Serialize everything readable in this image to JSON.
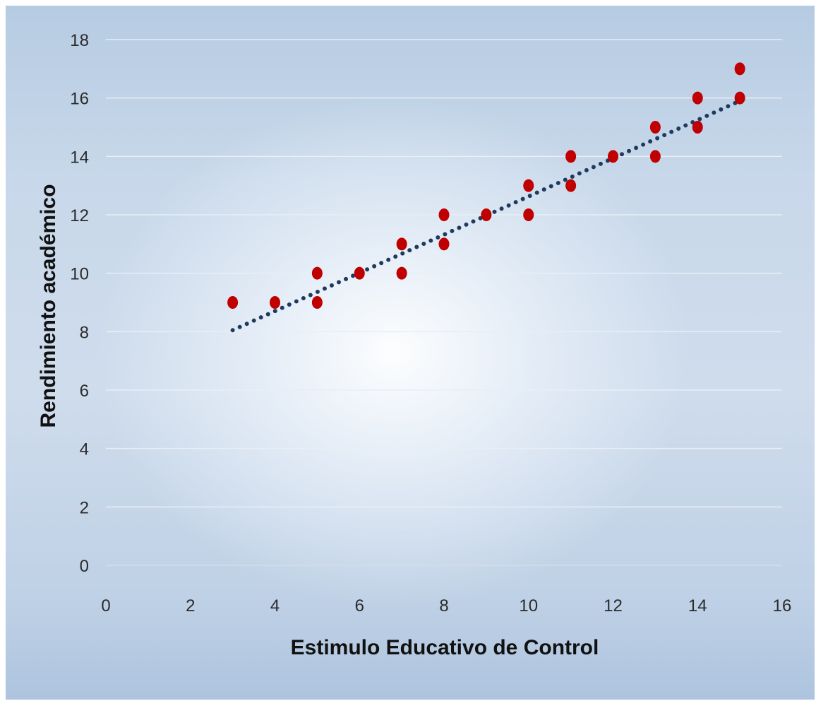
{
  "chart_data": {
    "type": "scatter",
    "xlabel": "Estimulo Educativo de Control",
    "ylabel": "Rendimiento académico",
    "xlim": [
      0,
      16
    ],
    "ylim": [
      0,
      18
    ],
    "x_ticks": [
      "0",
      "2",
      "4",
      "6",
      "8",
      "10",
      "12",
      "14",
      "16"
    ],
    "y_ticks": [
      "0",
      "2",
      "4",
      "6",
      "8",
      "10",
      "12",
      "14",
      "16",
      "18"
    ],
    "grid": "horizontal",
    "marker_color": "#c00000",
    "trendline_color": "#1f3a5f",
    "points": [
      {
        "x": 3,
        "y": 9
      },
      {
        "x": 4,
        "y": 9
      },
      {
        "x": 5,
        "y": 10
      },
      {
        "x": 5,
        "y": 9
      },
      {
        "x": 6,
        "y": 10
      },
      {
        "x": 7,
        "y": 11
      },
      {
        "x": 7,
        "y": 10
      },
      {
        "x": 8,
        "y": 12
      },
      {
        "x": 8,
        "y": 11
      },
      {
        "x": 9,
        "y": 12
      },
      {
        "x": 10,
        "y": 13
      },
      {
        "x": 10,
        "y": 12
      },
      {
        "x": 11,
        "y": 14
      },
      {
        "x": 11,
        "y": 13
      },
      {
        "x": 12,
        "y": 14
      },
      {
        "x": 13,
        "y": 15
      },
      {
        "x": 13,
        "y": 14
      },
      {
        "x": 14,
        "y": 16
      },
      {
        "x": 14,
        "y": 15
      },
      {
        "x": 15,
        "y": 17
      },
      {
        "x": 15,
        "y": 16
      }
    ],
    "trendline": {
      "type": "linear",
      "x_start": 3,
      "y_start": 8.05,
      "x_end": 15,
      "y_end": 15.9
    }
  }
}
